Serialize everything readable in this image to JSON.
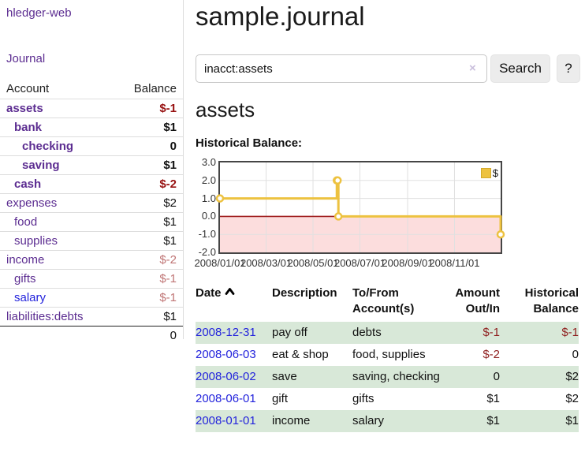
{
  "app": {
    "brand": "hledger-web"
  },
  "sidebar": {
    "journal_label": "Journal",
    "header": {
      "account": "Account",
      "balance": "Balance"
    },
    "accounts": [
      {
        "name": "assets",
        "balance": "$-1",
        "indent": 1,
        "bold": true,
        "name_color": "purple",
        "balance_class": "neg-strong"
      },
      {
        "name": "bank",
        "balance": "$1",
        "indent": 2,
        "bold": true,
        "name_color": "purple",
        "balance_class": "pos"
      },
      {
        "name": "checking",
        "balance": "0",
        "indent": 3,
        "bold": true,
        "name_color": "purple",
        "balance_class": "pos"
      },
      {
        "name": "saving",
        "balance": "$1",
        "indent": 3,
        "bold": true,
        "name_color": "purple",
        "balance_class": "pos"
      },
      {
        "name": "cash",
        "balance": "$-2",
        "indent": 2,
        "bold": true,
        "name_color": "purple",
        "balance_class": "neg-strong"
      },
      {
        "name": "expenses",
        "balance": "$2",
        "indent": 1,
        "bold": false,
        "name_color": "purple",
        "balance_class": "pos"
      },
      {
        "name": "food",
        "balance": "$1",
        "indent": 2,
        "bold": false,
        "name_color": "purple",
        "balance_class": "pos"
      },
      {
        "name": "supplies",
        "balance": "$1",
        "indent": 2,
        "bold": false,
        "name_color": "purple",
        "balance_class": "pos"
      },
      {
        "name": "income",
        "balance": "$-2",
        "indent": 1,
        "bold": false,
        "name_color": "purple",
        "balance_class": "neg-soft"
      },
      {
        "name": "gifts",
        "balance": "$-1",
        "indent": 2,
        "bold": false,
        "name_color": "purple",
        "balance_class": "neg-soft"
      },
      {
        "name": "salary",
        "balance": "$-1",
        "indent": 2,
        "bold": false,
        "name_color": "blue",
        "balance_class": "neg-soft"
      },
      {
        "name": "liabilities:debts",
        "balance": "$1",
        "indent": 1,
        "bold": false,
        "name_color": "purple",
        "balance_class": "pos"
      }
    ],
    "total": "0"
  },
  "main": {
    "title": "sample.journal",
    "search": {
      "value": "inacct:assets",
      "clear_label": "×",
      "button_label": "Search",
      "help_label": "?"
    },
    "account_heading": "assets",
    "chart_label": "Historical Balance:"
  },
  "chart_data": {
    "type": "line",
    "title": "Historical Balance",
    "step": true,
    "series": [
      {
        "name": "$",
        "color": "#edc240",
        "points": [
          [
            "2008-01-01",
            1
          ],
          [
            "2008-06-01",
            2
          ],
          [
            "2008-06-02",
            2
          ],
          [
            "2008-06-03",
            0
          ],
          [
            "2008-12-31",
            -1
          ]
        ]
      }
    ],
    "x_ticks": [
      "2008/01/01",
      "2008/03/01",
      "2008/05/01",
      "2008/07/01",
      "2008/09/01",
      "2008/11/01"
    ],
    "y_ticks": [
      3.0,
      2.0,
      1.0,
      0.0,
      -1.0,
      -2.0
    ],
    "ylim": [
      -2,
      3
    ],
    "x_range_days": 365,
    "legend": {
      "label": "$",
      "position": "top-right"
    },
    "grid": true,
    "colors": {
      "line": "#edc240",
      "marker_fill": "#ffffff",
      "grid": "#e0e0e0",
      "zero_line": "#a02020",
      "below_zero_fill": "#fcdddd",
      "border": "#454545"
    }
  },
  "register": {
    "headers": {
      "date": "Date",
      "description": "Description",
      "accounts": "To/From Account(s)",
      "amount": "Amount Out/In",
      "balance": "Historical Balance"
    },
    "rows": [
      {
        "date": "2008-12-31",
        "description": "pay off",
        "accounts": "debts",
        "amount": "$-1",
        "balance": "$-1"
      },
      {
        "date": "2008-06-03",
        "description": "eat & shop",
        "accounts": "food, supplies",
        "amount": "$-2",
        "balance": "0"
      },
      {
        "date": "2008-06-02",
        "description": "save",
        "accounts": "saving, checking",
        "amount": "0",
        "balance": "$2"
      },
      {
        "date": "2008-06-01",
        "description": "gift",
        "accounts": "gifts",
        "amount": "$1",
        "balance": "$2"
      },
      {
        "date": "2008-01-01",
        "description": "income",
        "accounts": "salary",
        "amount": "$1",
        "balance": "$1"
      }
    ]
  }
}
